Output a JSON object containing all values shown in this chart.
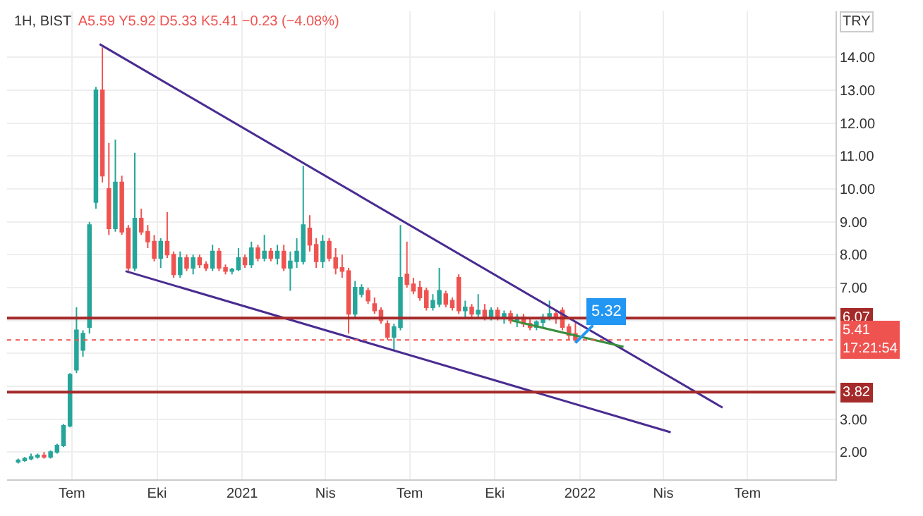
{
  "chart_data": {
    "type": "candlestick",
    "title": "1H, BIST",
    "subtitle": "A5.59 Y5.92 D5.33 K5.41 −0.23 (−4.08%)",
    "x": [
      "2020-05-04",
      "2020-05-11",
      "2020-05-18",
      "2020-05-25",
      "2020-06-01",
      "2020-06-08",
      "2020-06-15",
      "2020-06-22",
      "2020-06-29",
      "2020-07-06",
      "2020-07-13",
      "2020-07-20",
      "2020-07-27",
      "2020-08-03",
      "2020-08-10",
      "2020-08-17",
      "2020-08-24",
      "2020-08-31",
      "2020-09-07",
      "2020-09-14",
      "2020-09-21",
      "2020-09-28",
      "2020-10-05",
      "2020-10-12",
      "2020-10-19",
      "2020-10-26",
      "2020-11-02",
      "2020-11-09",
      "2020-11-16",
      "2020-11-23",
      "2020-11-30",
      "2020-12-07",
      "2020-12-14",
      "2020-12-21",
      "2020-12-28",
      "2021-01-04",
      "2021-01-11",
      "2021-01-18",
      "2021-01-25",
      "2021-02-01",
      "2021-02-08",
      "2021-02-15",
      "2021-02-22",
      "2021-03-01",
      "2021-03-08",
      "2021-03-15",
      "2021-03-22",
      "2021-03-29",
      "2021-04-05",
      "2021-04-12",
      "2021-04-19",
      "2021-04-26",
      "2021-05-03",
      "2021-05-10",
      "2021-05-17",
      "2021-05-24",
      "2021-05-31",
      "2021-06-07",
      "2021-06-14",
      "2021-06-21",
      "2021-06-28",
      "2021-07-05",
      "2021-07-12",
      "2021-07-19",
      "2021-07-26",
      "2021-08-02",
      "2021-08-09",
      "2021-08-16",
      "2021-08-23",
      "2021-08-30",
      "2021-09-06",
      "2021-09-13",
      "2021-09-20",
      "2021-09-27",
      "2021-10-04",
      "2021-10-11",
      "2021-10-18",
      "2021-10-25",
      "2021-11-01",
      "2021-11-08",
      "2021-11-15",
      "2021-11-22",
      "2021-11-29",
      "2021-12-06",
      "2021-12-13",
      "2021-12-20",
      "2021-12-27"
    ],
    "ohlc": [
      [
        1.7,
        1.8,
        1.65,
        1.75
      ],
      [
        1.75,
        1.85,
        1.7,
        1.8
      ],
      [
        1.8,
        1.95,
        1.75,
        1.85
      ],
      [
        1.85,
        1.95,
        1.8,
        1.9
      ],
      [
        1.9,
        2.0,
        1.8,
        1.85
      ],
      [
        1.85,
        2.05,
        1.8,
        2.0
      ],
      [
        2.0,
        2.25,
        1.95,
        2.2
      ],
      [
        2.2,
        2.85,
        2.15,
        2.8
      ],
      [
        2.8,
        4.4,
        2.75,
        4.35
      ],
      [
        4.5,
        6.4,
        4.4,
        5.7
      ],
      [
        5.1,
        5.7,
        4.9,
        5.6
      ],
      [
        5.8,
        9.0,
        5.6,
        8.9
      ],
      [
        9.6,
        13.1,
        9.4,
        13.0
      ],
      [
        13.0,
        14.3,
        10.2,
        10.4
      ],
      [
        10.0,
        11.4,
        8.6,
        8.8
      ],
      [
        8.8,
        11.5,
        8.7,
        10.2
      ],
      [
        10.2,
        10.4,
        8.6,
        8.7
      ],
      [
        8.8,
        8.9,
        7.5,
        7.6
      ],
      [
        7.6,
        11.1,
        7.5,
        9.1
      ],
      [
        9.1,
        9.4,
        8.6,
        8.7
      ],
      [
        8.7,
        8.9,
        8.2,
        8.4
      ],
      [
        8.4,
        8.6,
        7.8,
        7.9
      ],
      [
        7.9,
        8.5,
        7.6,
        8.4
      ],
      [
        8.4,
        9.3,
        7.9,
        8.0
      ],
      [
        8.0,
        8.1,
        7.3,
        7.4
      ],
      [
        7.4,
        8.1,
        7.3,
        7.9
      ],
      [
        7.9,
        8.0,
        7.5,
        7.6
      ],
      [
        7.6,
        8.0,
        7.4,
        7.9
      ],
      [
        7.9,
        8.0,
        7.6,
        7.7
      ],
      [
        7.7,
        7.8,
        7.5,
        7.6
      ],
      [
        7.6,
        8.3,
        7.5,
        8.1
      ],
      [
        8.1,
        8.2,
        7.5,
        7.6
      ],
      [
        7.6,
        7.7,
        7.4,
        7.5
      ],
      [
        7.5,
        7.6,
        7.4,
        7.55
      ],
      [
        7.55,
        8.2,
        7.5,
        7.9
      ],
      [
        7.9,
        8.0,
        7.6,
        7.7
      ],
      [
        7.7,
        8.4,
        7.6,
        8.2
      ],
      [
        8.2,
        8.3,
        7.8,
        7.9
      ],
      [
        7.9,
        8.6,
        7.8,
        8.1
      ],
      [
        8.1,
        8.2,
        7.8,
        7.9
      ],
      [
        7.9,
        8.3,
        7.7,
        8.1
      ],
      [
        8.1,
        8.3,
        7.5,
        7.6
      ],
      [
        7.6,
        8.1,
        6.9,
        7.8
      ],
      [
        7.8,
        8.5,
        7.6,
        8.1
      ],
      [
        7.8,
        10.7,
        7.7,
        8.9
      ],
      [
        8.8,
        9.2,
        8.1,
        8.3
      ],
      [
        8.3,
        8.5,
        7.6,
        7.8
      ],
      [
        7.8,
        8.6,
        7.6,
        8.4
      ],
      [
        8.4,
        8.5,
        7.8,
        7.9
      ],
      [
        7.9,
        8.2,
        7.4,
        7.6
      ],
      [
        7.6,
        8.0,
        7.3,
        7.5
      ],
      [
        7.5,
        7.6,
        5.6,
        6.2
      ],
      [
        6.2,
        7.2,
        6.1,
        7.0
      ],
      [
        6.8,
        7.1,
        6.7,
        7.0
      ],
      [
        6.9,
        7.0,
        6.5,
        6.6
      ],
      [
        6.5,
        6.7,
        6.2,
        6.3
      ],
      [
        6.3,
        6.4,
        5.9,
        6.0
      ],
      [
        5.9,
        6.0,
        5.4,
        5.5
      ],
      [
        5.5,
        5.9,
        5.1,
        5.8
      ],
      [
        5.8,
        8.9,
        5.7,
        7.3
      ],
      [
        7.4,
        8.4,
        7.0,
        7.1
      ],
      [
        7.1,
        7.3,
        6.8,
        6.9
      ],
      [
        7.0,
        7.2,
        6.6,
        6.7
      ],
      [
        6.9,
        7.0,
        6.3,
        6.4
      ],
      [
        6.4,
        6.8,
        6.3,
        6.6
      ],
      [
        6.5,
        7.6,
        6.4,
        6.9
      ],
      [
        6.8,
        6.9,
        6.4,
        6.5
      ],
      [
        6.6,
        6.7,
        6.3,
        6.4
      ],
      [
        7.3,
        7.4,
        6.2,
        6.3
      ],
      [
        6.3,
        6.6,
        6.1,
        6.4
      ],
      [
        6.4,
        6.5,
        6.1,
        6.2
      ],
      [
        6.2,
        6.8,
        6.1,
        6.3
      ],
      [
        6.3,
        6.5,
        6.0,
        6.1
      ],
      [
        6.1,
        6.4,
        6.0,
        6.3
      ],
      [
        6.3,
        6.4,
        6.0,
        6.1
      ],
      [
        6.1,
        6.3,
        5.9,
        6.2
      ],
      [
        6.2,
        6.3,
        5.9,
        6.0
      ],
      [
        6.0,
        6.2,
        5.8,
        6.1
      ],
      [
        6.1,
        6.2,
        5.8,
        5.9
      ],
      [
        5.9,
        6.1,
        5.7,
        5.8
      ],
      [
        5.8,
        6.0,
        5.7,
        5.95
      ],
      [
        5.95,
        6.2,
        5.8,
        6.1
      ],
      [
        6.1,
        6.6,
        6.0,
        6.2
      ],
      [
        6.2,
        6.3,
        5.9,
        6.1
      ],
      [
        6.3,
        6.4,
        5.7,
        5.8
      ],
      [
        5.8,
        5.9,
        5.4,
        5.55
      ],
      [
        5.59,
        5.92,
        5.33,
        5.41
      ]
    ],
    "colors": [
      "#26a69a",
      "#26a69a",
      "#26a69a",
      "#26a69a",
      "#ef5350",
      "#26a69a",
      "#26a69a",
      "#26a69a",
      "#26a69a",
      "#26a69a",
      "#26a69a",
      "#26a69a",
      "#26a69a",
      "#ef5350",
      "#ef5350",
      "#26a69a",
      "#ef5350",
      "#ef5350",
      "#26a69a",
      "#ef5350",
      "#ef5350",
      "#ef5350",
      "#26a69a",
      "#ef5350",
      "#ef5350",
      "#26a69a",
      "#ef5350",
      "#26a69a",
      "#ef5350",
      "#ef5350",
      "#26a69a",
      "#ef5350",
      "#ef5350",
      "#26a69a",
      "#26a69a",
      "#ef5350",
      "#26a69a",
      "#ef5350",
      "#26a69a",
      "#ef5350",
      "#26a69a",
      "#ef5350",
      "#26a69a",
      "#26a69a",
      "#26a69a",
      "#ef5350",
      "#ef5350",
      "#26a69a",
      "#ef5350",
      "#ef5350",
      "#ef5350",
      "#ef5350",
      "#26a69a",
      "#26a69a",
      "#ef5350",
      "#ef5350",
      "#ef5350",
      "#ef5350",
      "#26a69a",
      "#26a69a",
      "#ef5350",
      "#ef5350",
      "#ef5350",
      "#ef5350",
      "#26a69a",
      "#26a69a",
      "#ef5350",
      "#ef5350",
      "#ef5350",
      "#26a69a",
      "#ef5350",
      "#26a69a",
      "#ef5350",
      "#26a69a",
      "#ef5350",
      "#26a69a",
      "#ef5350",
      "#26a69a",
      "#ef5350",
      "#ef5350",
      "#26a69a",
      "#26a69a",
      "#26a69a",
      "#ef5350",
      "#ef5350",
      "#ef5350",
      "#ef5350"
    ],
    "series": [
      {
        "type": "line",
        "color": "#4a2c91",
        "x": [
          "2020-07-31",
          "2022-06-04"
        ],
        "values": [
          14.4,
          3.35
        ]
      },
      {
        "type": "line",
        "color": "#4a2c91",
        "x": [
          "2020-08-28",
          "2022-04-09"
        ],
        "values": [
          7.5,
          2.6
        ]
      },
      {
        "type": "line",
        "color": "#388e3c",
        "x": [
          "2021-10-19",
          "2022-02-17"
        ],
        "values": [
          6.0,
          5.2
        ]
      }
    ],
    "ref_lines": [
      {
        "axis": "y",
        "value": 6.07,
        "label": "6.07",
        "color": "#a52a2a",
        "line_style": "solid"
      },
      {
        "axis": "y",
        "value": 3.82,
        "label": "3.82",
        "color": "#a52a2a",
        "line_style": "solid"
      },
      {
        "axis": "y",
        "value": 5.41,
        "label": "5.41\n17:21:54",
        "color": "#ef5350",
        "line_style": "dotted"
      }
    ],
    "annotations": [
      {
        "text": "5.32",
        "x": "2021-12-27",
        "y": 5.32
      },
      "TRY"
    ],
    "xlim": [
      "2020-04-22",
      "2022-10-04"
    ],
    "xticks": [
      {
        "value": "2020-07-01",
        "label": "Tem"
      },
      {
        "value": "2020-10-01",
        "label": "Eki"
      },
      {
        "value": "2021-01-01",
        "label": "2021"
      },
      {
        "value": "2021-04-01",
        "label": "Nis"
      },
      {
        "value": "2021-07-01",
        "label": "Tem"
      },
      {
        "value": "2021-10-01",
        "label": "Eki"
      },
      {
        "value": "2022-01-01",
        "label": "2022"
      },
      {
        "value": "2022-04-01",
        "label": "Nis"
      },
      {
        "value": "2022-07-01",
        "label": "Tem"
      }
    ],
    "ylim": [
      1.17,
      15.4
    ],
    "yticks": [
      {
        "value": 2,
        "label": "2.00"
      },
      {
        "value": 3,
        "label": "3.00"
      },
      {
        "value": 4,
        "label": null
      },
      {
        "value": 5,
        "label": null
      },
      {
        "value": 6,
        "label": null
      },
      {
        "value": 7,
        "label": "7.00"
      },
      {
        "value": 8,
        "label": "8.00"
      },
      {
        "value": 9,
        "label": "9.00"
      },
      {
        "value": 10,
        "label": "10.00"
      },
      {
        "value": 11,
        "label": "11.00"
      },
      {
        "value": 12,
        "label": "12.00"
      },
      {
        "value": 13,
        "label": "13.00"
      },
      {
        "value": 14,
        "label": "14.00"
      }
    ],
    "grid": true,
    "legend": false
  }
}
